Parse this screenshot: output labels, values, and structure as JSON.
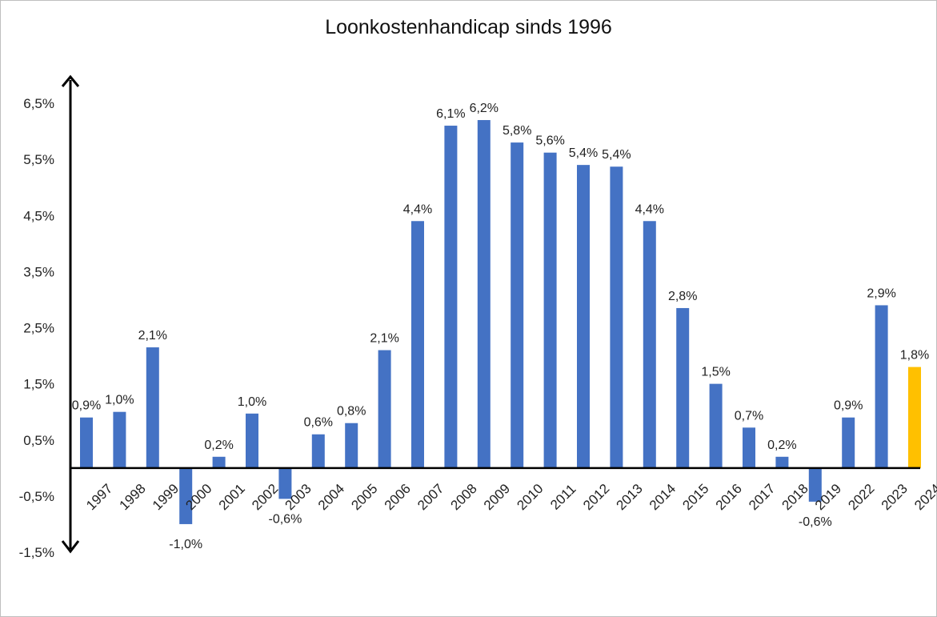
{
  "chart_data": {
    "type": "bar",
    "title": "Loonkostenhandicap sinds 1996",
    "xlabel": "",
    "ylabel": "",
    "ylim": [
      -1.5,
      6.5
    ],
    "y_ticks": [
      "6,5%",
      "5,5%",
      "4,5%",
      "3,5%",
      "2,5%",
      "1,5%",
      "0,5%",
      "-0,5%",
      "-1,5%"
    ],
    "y_tick_values": [
      6.5,
      5.5,
      4.5,
      3.5,
      2.5,
      1.5,
      0.5,
      -0.5,
      -1.5
    ],
    "grid": false,
    "legend": "none",
    "categories": [
      "1997",
      "1998",
      "1999",
      "2000",
      "2001",
      "2002",
      "2003",
      "2004",
      "2005",
      "2006",
      "2007",
      "2008",
      "2009",
      "2010",
      "2011",
      "2012",
      "2013",
      "2014",
      "2015",
      "2016",
      "2017",
      "2018",
      "2019",
      "2022",
      "2023",
      "2024"
    ],
    "values": [
      0.9,
      1.0,
      2.15,
      -1.0,
      0.2,
      0.97,
      -0.55,
      0.6,
      0.8,
      2.1,
      4.4,
      6.1,
      6.2,
      5.8,
      5.62,
      5.4,
      5.37,
      4.4,
      2.85,
      1.5,
      0.72,
      0.2,
      -0.6,
      0.9,
      2.9,
      1.8
    ],
    "data_labels": [
      "0,9%",
      "1,0%",
      "2,1%",
      "-1,0%",
      "0,2%",
      "1,0%",
      "-0,6%",
      "0,6%",
      "0,8%",
      "2,1%",
      "4,4%",
      "6,1%",
      "6,2%",
      "5,8%",
      "5,6%",
      "5,4%",
      "5,4%",
      "4,4%",
      "2,8%",
      "1,5%",
      "0,7%",
      "0,2%",
      "-0,6%",
      "0,9%",
      "2,9%",
      "1,8%"
    ],
    "colors": {
      "bar": "#4472c4",
      "highlight": "#ffc000",
      "axis": "#000000",
      "text": "#222222"
    },
    "highlight_index": 25
  }
}
